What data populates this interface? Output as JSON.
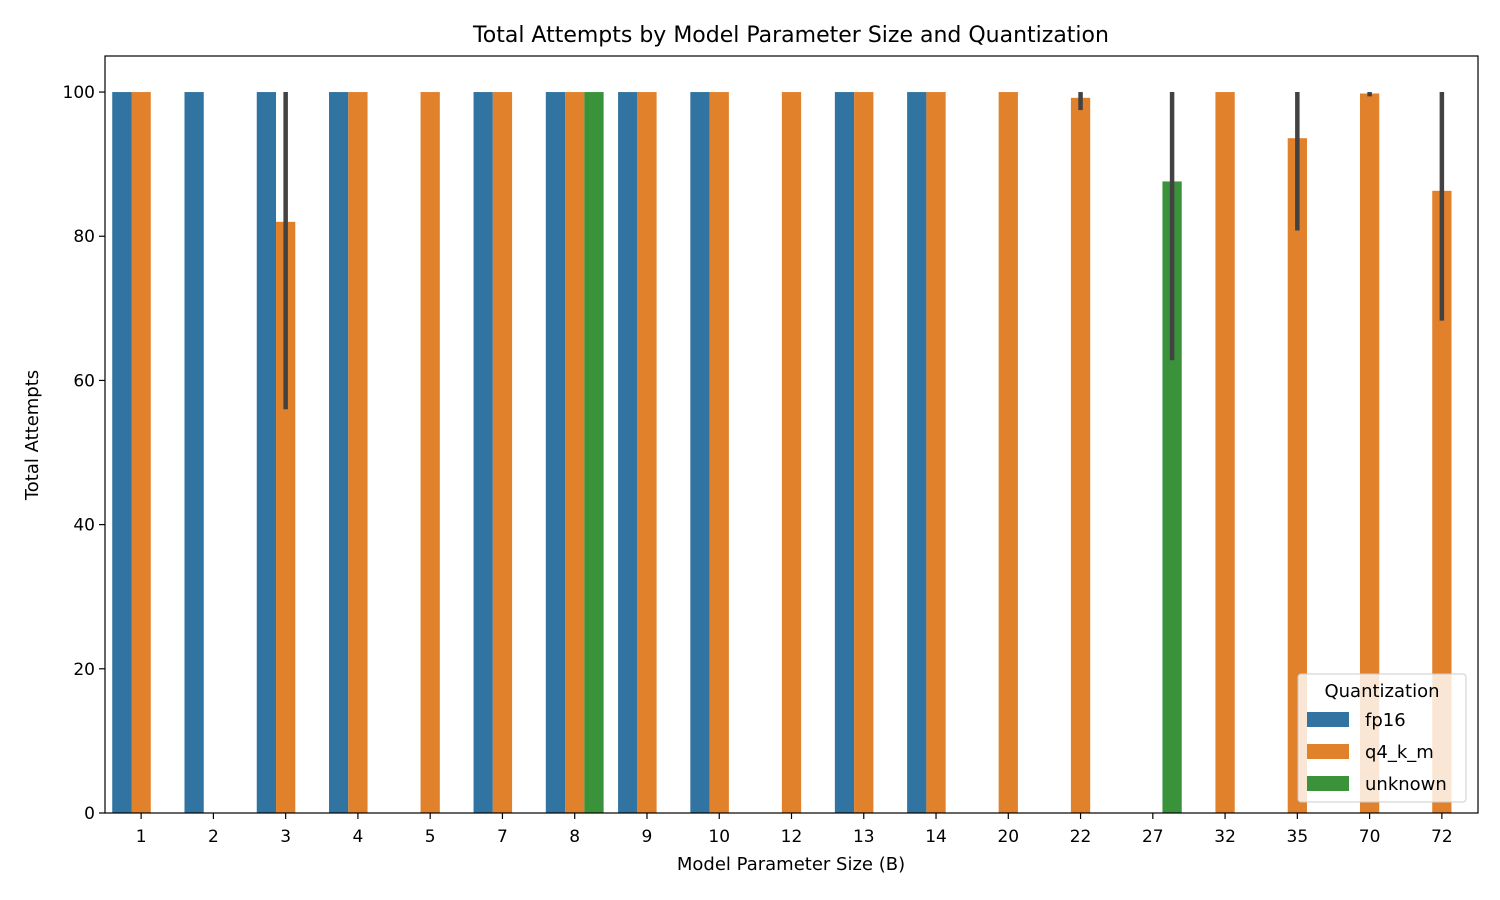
{
  "chart_data": {
    "type": "bar",
    "title": "Total Attempts by Model Parameter Size and Quantization",
    "xlabel": "Model Parameter Size (B)",
    "ylabel": "Total Attempts",
    "ylim": [
      0,
      105
    ],
    "yticks": [
      0,
      20,
      40,
      60,
      80,
      100
    ],
    "categories": [
      "1",
      "2",
      "3",
      "4",
      "5",
      "7",
      "8",
      "9",
      "10",
      "12",
      "13",
      "14",
      "20",
      "22",
      "27",
      "32",
      "35",
      "70",
      "72"
    ],
    "legend": {
      "title": "Quantization",
      "position": "lower-right"
    },
    "grid": false,
    "series": [
      {
        "name": "fp16",
        "color": "#3274a1",
        "values": [
          100,
          100,
          100,
          100,
          null,
          100,
          100,
          100,
          100,
          null,
          100,
          100,
          null,
          null,
          null,
          null,
          null,
          null,
          null
        ],
        "error": [
          null,
          null,
          null,
          null,
          null,
          null,
          null,
          null,
          null,
          null,
          null,
          null,
          null,
          null,
          null,
          null,
          null,
          null,
          null
        ]
      },
      {
        "name": "q4_k_m",
        "color": "#e1812c",
        "values": [
          100,
          null,
          82,
          100,
          100,
          100,
          100,
          100,
          100,
          100,
          100,
          100,
          100,
          99.2,
          null,
          100,
          93.6,
          99.8,
          86.3
        ],
        "error": [
          null,
          null,
          [
            56,
            100
          ],
          null,
          null,
          null,
          null,
          null,
          null,
          null,
          null,
          null,
          null,
          [
            97.5,
            100
          ],
          null,
          null,
          [
            80.8,
            100
          ],
          [
            99.4,
            100
          ],
          [
            68.3,
            100
          ]
        ]
      },
      {
        "name": "unknown",
        "color": "#3a923a",
        "values": [
          null,
          null,
          null,
          null,
          null,
          null,
          100,
          null,
          null,
          null,
          null,
          null,
          null,
          null,
          87.6,
          null,
          null,
          null,
          null
        ],
        "error": [
          null,
          null,
          null,
          null,
          null,
          null,
          null,
          null,
          null,
          null,
          null,
          null,
          null,
          null,
          [
            62.8,
            100
          ],
          null,
          null,
          null,
          null
        ]
      }
    ]
  }
}
